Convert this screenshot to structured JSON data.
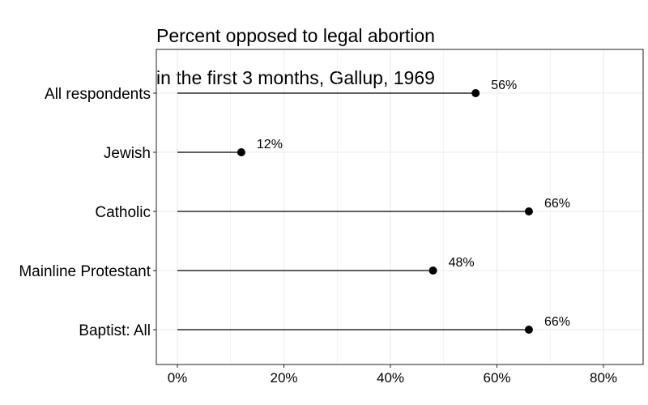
{
  "chart_data": {
    "type": "lollipop",
    "title_line1": "Percent opposed to legal abortion",
    "title_line2": "in the first 3 months, Gallup, 1969",
    "xlabel": "",
    "ylabel": "",
    "categories": [
      "All respondents",
      "Jewish",
      "Catholic",
      "Mainline Protestant",
      "Baptist: All"
    ],
    "values": [
      56,
      12,
      66,
      48,
      66
    ],
    "value_labels": [
      "56%",
      "12%",
      "66%",
      "48%",
      "66%"
    ],
    "x_ticks": [
      0,
      20,
      40,
      60,
      80
    ],
    "x_tick_labels": [
      "0%",
      "20%",
      "40%",
      "60%",
      "80%"
    ],
    "xlim": [
      -4,
      88
    ],
    "grid": true,
    "colors": {
      "mark": "#000000",
      "grid": "#ebebeb",
      "panel_border": "#333333"
    }
  }
}
